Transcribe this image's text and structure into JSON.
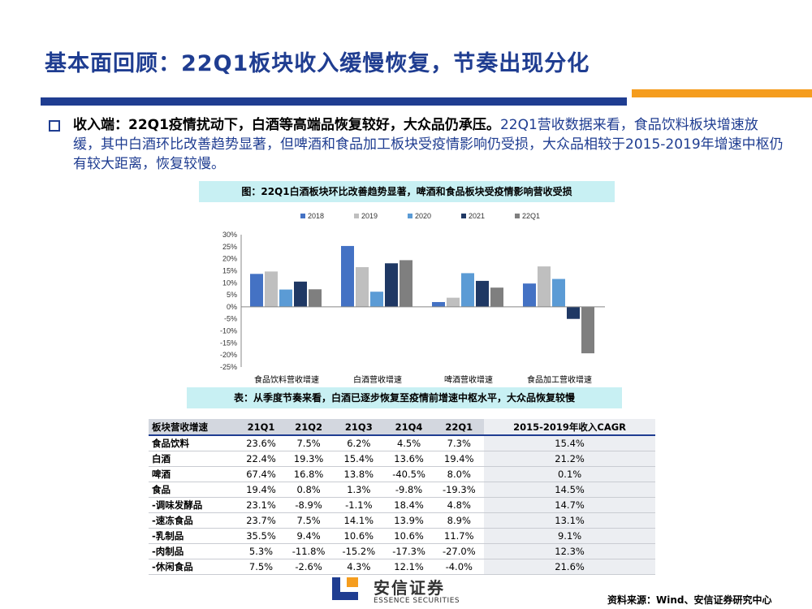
{
  "title": "基本面回顾：22Q1板块收入缓慢恢复，节奏出现分化",
  "colors": {
    "primary": "#1f3d91",
    "accent": "#f59d1e",
    "caption_bg": "#c8f0f3"
  },
  "intro": {
    "bold": "收入端：22Q1疫情扰动下，白酒等高端品恢复较好，大众品仍承压。",
    "text": "22Q1营收数据来看，食品饮料板块增速放缓，其中白酒环比改善趋势显著，但啤酒和食品加工板块受疫情影响仍受损，大众品相较于2015-2019年增速中枢仍有较大距离，恢复较慢。"
  },
  "chart_caption": "图：22Q1白酒板块环比改善趋势显著，啤酒和食品板块受疫情影响营收受损",
  "chart_data": {
    "type": "bar",
    "categories": [
      "食品饮料营收增速",
      "白酒营收增速",
      "啤酒营收增速",
      "食品加工营收增速"
    ],
    "series": [
      {
        "name": "2018",
        "color": "#4472c4",
        "values": [
          13.7,
          25.3,
          2.0,
          9.7
        ]
      },
      {
        "name": "2019",
        "color": "#bfbfbf",
        "values": [
          14.7,
          16.5,
          3.8,
          16.8
        ]
      },
      {
        "name": "2020",
        "color": "#5b9bd5",
        "values": [
          7.2,
          6.3,
          14.0,
          11.6
        ]
      },
      {
        "name": "2021",
        "color": "#1f3864",
        "values": [
          10.5,
          18.1,
          10.8,
          -5.0
        ]
      },
      {
        "name": "22Q1",
        "color": "#7f7f7f",
        "values": [
          7.3,
          19.4,
          8.0,
          -19.3
        ]
      }
    ],
    "yticks": [
      "30%",
      "25%",
      "20%",
      "15%",
      "10%",
      "5%",
      "0%",
      "-5%",
      "-10%",
      "-15%",
      "-20%",
      "-25%"
    ],
    "ylim": [
      -25,
      30
    ]
  },
  "table_caption": "表：从季度节奏来看，白酒已逐步恢复至疫情前增速中枢水平，大众品恢复较慢",
  "table": {
    "headers": [
      "板块营收增速",
      "21Q1",
      "21Q2",
      "21Q3",
      "21Q4",
      "22Q1",
      "2015-2019年收入CAGR"
    ],
    "rows": [
      [
        "食品饮料",
        "23.6%",
        "7.5%",
        "6.2%",
        "4.5%",
        "7.3%",
        "15.4%"
      ],
      [
        "白酒",
        "22.4%",
        "19.3%",
        "15.4%",
        "13.6%",
        "19.4%",
        "21.2%"
      ],
      [
        "啤酒",
        "67.4%",
        "16.8%",
        "13.8%",
        "-40.5%",
        "8.0%",
        "0.1%"
      ],
      [
        "食品",
        "19.4%",
        "0.8%",
        "1.3%",
        "-9.8%",
        "-19.3%",
        "14.5%"
      ],
      [
        "-调味发酵品",
        "23.1%",
        "-8.9%",
        "-1.1%",
        "18.4%",
        "4.8%",
        "14.7%"
      ],
      [
        "-速冻食品",
        "23.7%",
        "7.5%",
        "14.1%",
        "13.9%",
        "8.9%",
        "13.1%"
      ],
      [
        "-乳制品",
        "35.5%",
        "9.4%",
        "10.6%",
        "10.6%",
        "11.7%",
        "9.1%"
      ],
      [
        "-肉制品",
        "5.3%",
        "-11.8%",
        "-15.2%",
        "-17.3%",
        "-27.0%",
        "12.3%"
      ],
      [
        "-休闲食品",
        "7.5%",
        "-2.6%",
        "4.3%",
        "12.1%",
        "-4.0%",
        "21.6%"
      ]
    ]
  },
  "logo": {
    "name": "安信证券",
    "sub": "ESSENCE SECURITIES"
  },
  "source": "资料来源：Wind、安信证券研究中心"
}
